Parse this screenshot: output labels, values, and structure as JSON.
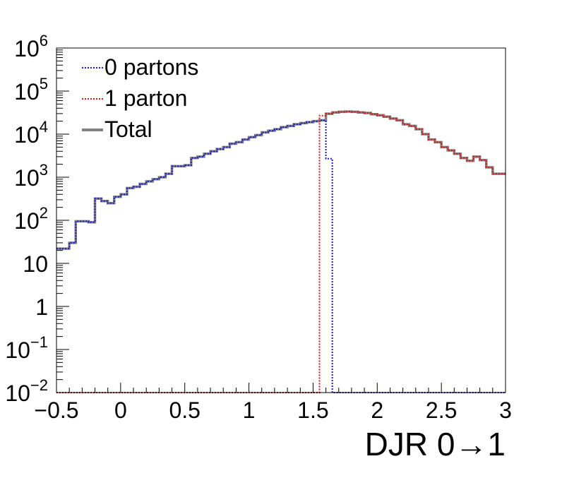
{
  "chart_data": {
    "type": "line",
    "title": "",
    "xlabel": "DJR 0→1",
    "ylabel": "",
    "xlim": [
      -0.5,
      3
    ],
    "ylim": [
      0.01,
      1000000
    ],
    "yscale": "log",
    "grid": false,
    "legend_position": "top-left",
    "bin_width": 0.05,
    "x_ticks": [
      -0.5,
      0,
      0.5,
      1,
      1.5,
      2,
      2.5,
      3
    ],
    "x_tick_labels": [
      "−0.5",
      "0",
      "0.5",
      "1",
      "1.5",
      "2",
      "2.5",
      "3"
    ],
    "y_ticks": [
      {
        "value": 0.01,
        "base": "10",
        "exp": "−2"
      },
      {
        "value": 0.1,
        "base": "10",
        "exp": "−1"
      },
      {
        "value": 1,
        "base": "1",
        "exp": ""
      },
      {
        "value": 10,
        "base": "10",
        "exp": ""
      },
      {
        "value": 100,
        "base": "10",
        "exp": "2"
      },
      {
        "value": 1000,
        "base": "10",
        "exp": "3"
      },
      {
        "value": 10000,
        "base": "10",
        "exp": "4"
      },
      {
        "value": 100000,
        "base": "10",
        "exp": "5"
      },
      {
        "value": 1000000,
        "base": "10",
        "exp": "6"
      }
    ],
    "bin_edges_start": -0.5,
    "series": [
      {
        "name": "0 partons",
        "color": "#1a1acc",
        "style": "dotted",
        "values": [
          22,
          22,
          30,
          95,
          95,
          90,
          320,
          280,
          250,
          350,
          400,
          560,
          600,
          700,
          800,
          900,
          1000,
          1200,
          1800,
          1800,
          1900,
          2800,
          3000,
          3500,
          4000,
          4500,
          5000,
          6000,
          6500,
          7500,
          8500,
          9500,
          11000,
          12000,
          13000,
          14500,
          15500,
          17000,
          18000,
          19000,
          20000,
          21000,
          2700,
          0.01,
          0.01,
          0.01,
          0.01,
          0.01,
          0.01,
          0.01,
          0.01,
          0.01,
          0.01,
          0.01,
          0.01,
          0.01,
          0.01,
          0.01,
          0.01,
          0.01,
          0.01,
          0.01,
          0.01,
          0.01,
          0.01,
          0.01,
          0.01,
          0.01,
          0.01,
          0.01
        ]
      },
      {
        "name": "1 parton",
        "color": "#dd1111",
        "style": "dotted",
        "values": [
          0.01,
          0.01,
          0.01,
          0.01,
          0.01,
          0.01,
          0.01,
          0.01,
          0.01,
          0.01,
          0.01,
          0.01,
          0.01,
          0.01,
          0.01,
          0.01,
          0.01,
          0.01,
          0.01,
          0.01,
          0.01,
          0.01,
          0.01,
          0.01,
          0.01,
          0.01,
          0.01,
          0.01,
          0.01,
          0.01,
          0.01,
          0.01,
          0.01,
          0.01,
          0.01,
          0.01,
          0.01,
          0.01,
          0.01,
          0.01,
          0.01,
          27000,
          30000,
          32000,
          33000,
          33500,
          33000,
          32000,
          31000,
          29000,
          27500,
          25500,
          23000,
          21000,
          17000,
          15500,
          13000,
          10000,
          7500,
          6500,
          5000,
          4200,
          3500,
          2800,
          2400,
          3000,
          2500,
          1700,
          1200,
          1200
        ]
      },
      {
        "name": "Total",
        "color": "#808080",
        "style": "solid",
        "values": [
          22,
          22,
          30,
          95,
          95,
          90,
          320,
          280,
          250,
          350,
          400,
          560,
          600,
          700,
          800,
          900,
          1000,
          1200,
          1800,
          1800,
          1900,
          2800,
          3000,
          3500,
          4000,
          4500,
          5000,
          6000,
          6500,
          7500,
          8500,
          9500,
          11000,
          12000,
          13000,
          14500,
          15500,
          17000,
          18000,
          19000,
          20000,
          21000,
          29700,
          32000,
          33000,
          33500,
          33000,
          32000,
          31000,
          29000,
          27500,
          25500,
          23000,
          21000,
          17000,
          15500,
          13000,
          10000,
          7500,
          6500,
          5000,
          4200,
          3500,
          2800,
          2400,
          3000,
          2500,
          1700,
          1200,
          1200
        ]
      }
    ]
  }
}
